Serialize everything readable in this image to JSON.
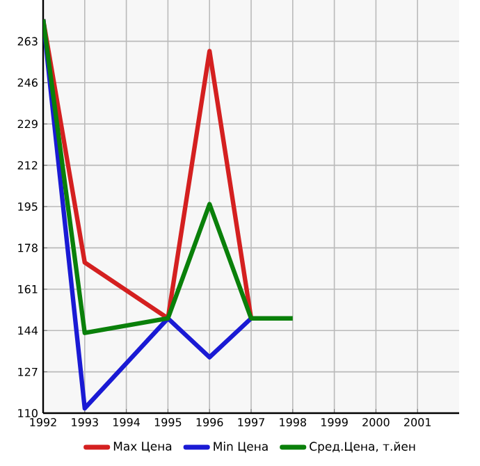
{
  "chart_data": {
    "type": "line",
    "x": [
      1992,
      1993,
      1995,
      1996,
      1997,
      1998
    ],
    "series": [
      {
        "name": "Max Цена",
        "color": "#d42020",
        "values": [
          272,
          172,
          149,
          259,
          149,
          null
        ]
      },
      {
        "name": "Min Цена",
        "color": "#1a1ad4",
        "values": [
          272,
          112,
          149,
          133,
          149,
          null
        ]
      },
      {
        "name": "Сред.Цена, т.йен",
        "color": "#0a800a",
        "values": [
          272,
          143,
          149,
          196,
          149,
          149
        ]
      }
    ],
    "xlim": [
      1992,
      2002
    ],
    "xticks": [
      1992,
      1993,
      1994,
      1995,
      1996,
      1997,
      1998,
      1999,
      2000,
      2001
    ],
    "ylim": [
      110,
      280
    ],
    "yticks": [
      110,
      127,
      144,
      161,
      178,
      195,
      212,
      229,
      246,
      263
    ],
    "grid": true,
    "legend": "bottom",
    "marker": "none",
    "line_style": "solid"
  }
}
